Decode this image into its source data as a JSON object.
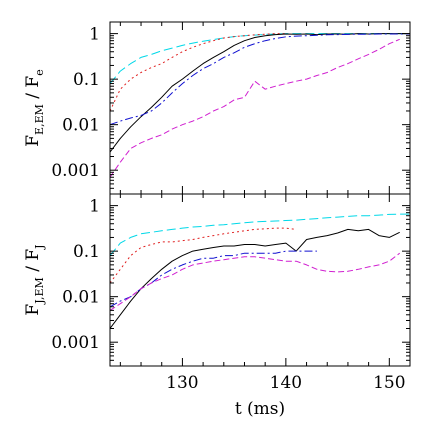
{
  "chart_data": [
    {
      "type": "line",
      "ylabel": {
        "main": "F",
        "sub": "E,EM",
        "sep": " / ",
        "main2": "F",
        "sub2": "e"
      },
      "y_scale": "log",
      "xlim": [
        123,
        152
      ],
      "ylim": [
        0.0003,
        1.8
      ],
      "x_ticks": [
        130,
        140,
        150
      ],
      "y_ticks": [
        {
          "value": 1,
          "label": "1"
        },
        {
          "value": 0.1,
          "label": "0.1"
        },
        {
          "value": 0.01,
          "label": "0.01"
        },
        {
          "value": 0.001,
          "label": "0.001"
        }
      ],
      "series": [
        {
          "color": "#00d8e8",
          "dash": "9 4",
          "x": [
            123,
            124,
            125,
            126,
            127,
            128,
            129,
            130,
            131,
            132,
            133,
            134,
            135,
            136,
            137,
            138,
            139,
            140,
            141,
            142,
            143,
            144,
            145,
            146,
            147,
            148,
            149,
            150,
            151,
            152
          ],
          "y": [
            0.08,
            0.15,
            0.22,
            0.3,
            0.35,
            0.42,
            0.48,
            0.55,
            0.62,
            0.68,
            0.74,
            0.8,
            0.86,
            0.9,
            0.93,
            0.96,
            0.98,
            1.0,
            1.0,
            1.0,
            1.0,
            1.0,
            1.0,
            1.0,
            1.0,
            1.0,
            1.0,
            1.0,
            1.0,
            1.0
          ]
        },
        {
          "color": "#e02020",
          "dash": "2 3",
          "x": [
            123,
            124,
            125,
            126,
            127,
            128,
            129,
            130,
            131,
            132,
            133,
            134,
            135,
            136,
            137,
            138,
            139,
            140
          ],
          "y": [
            0.02,
            0.06,
            0.1,
            0.14,
            0.18,
            0.22,
            0.3,
            0.4,
            0.5,
            0.6,
            0.7,
            0.8,
            0.86,
            0.9,
            0.94,
            0.97,
            1.0,
            1.0
          ]
        },
        {
          "color": "#000000",
          "dash": "",
          "x": [
            123,
            124,
            125,
            126,
            127,
            128,
            129,
            130,
            131,
            132,
            133,
            134,
            135,
            136,
            137,
            138,
            139,
            140,
            141,
            142,
            143,
            144,
            145,
            146,
            147,
            148,
            149,
            150,
            151,
            152
          ],
          "y": [
            0.0025,
            0.005,
            0.009,
            0.015,
            0.024,
            0.04,
            0.07,
            0.1,
            0.15,
            0.22,
            0.3,
            0.4,
            0.55,
            0.7,
            0.82,
            0.9,
            0.95,
            0.98,
            0.97,
            0.98,
            0.95,
            0.98,
            0.98,
            0.97,
            1.0,
            0.98,
            1.0,
            1.0,
            1.0,
            1.0
          ]
        },
        {
          "color": "#1010d0",
          "dash": "8 3 2 3",
          "x": [
            123,
            124,
            125,
            126,
            127,
            128,
            129,
            130,
            131,
            132,
            133,
            134,
            135,
            136,
            137,
            138,
            139,
            140,
            141,
            142,
            143,
            144,
            145,
            146,
            147,
            148,
            149,
            150,
            151,
            152
          ],
          "y": [
            0.01,
            0.012,
            0.014,
            0.016,
            0.02,
            0.03,
            0.05,
            0.08,
            0.12,
            0.17,
            0.22,
            0.3,
            0.38,
            0.5,
            0.6,
            0.7,
            0.78,
            0.85,
            0.88,
            0.9,
            0.92,
            0.94,
            0.95,
            0.96,
            0.97,
            0.97,
            0.98,
            0.98,
            0.98,
            0.98
          ]
        },
        {
          "color": "#d020d0",
          "dash": "6 3",
          "x": [
            123,
            124,
            125,
            126,
            127,
            128,
            129,
            130,
            131,
            132,
            133,
            134,
            135,
            136,
            137,
            138,
            139,
            140,
            141,
            142,
            143,
            144,
            145,
            146,
            147,
            148,
            149,
            150,
            151
          ],
          "y": [
            0.0007,
            0.0015,
            0.003,
            0.004,
            0.005,
            0.006,
            0.008,
            0.01,
            0.012,
            0.015,
            0.02,
            0.025,
            0.035,
            0.04,
            0.09,
            0.06,
            0.07,
            0.08,
            0.09,
            0.1,
            0.12,
            0.14,
            0.18,
            0.22,
            0.28,
            0.35,
            0.45,
            0.6,
            0.75
          ]
        }
      ]
    },
    {
      "type": "line",
      "xlabel": "t (ms)",
      "ylabel": {
        "main": "F",
        "sub": "J,EM",
        "sep": " / ",
        "main2": "F",
        "sub2": "J"
      },
      "y_scale": "log",
      "xlim": [
        123,
        152
      ],
      "ylim": [
        0.0003,
        1.8
      ],
      "x_ticks": [
        {
          "value": 130,
          "label": "130"
        },
        {
          "value": 140,
          "label": "140"
        },
        {
          "value": 150,
          "label": "150"
        }
      ],
      "y_ticks": [
        {
          "value": 1,
          "label": "1"
        },
        {
          "value": 0.1,
          "label": "0.1"
        },
        {
          "value": 0.01,
          "label": "0.01"
        },
        {
          "value": 0.001,
          "label": "0.001"
        }
      ],
      "series": [
        {
          "color": "#00d8e8",
          "dash": "9 4",
          "x": [
            123,
            124,
            125,
            126,
            127,
            128,
            129,
            130,
            131,
            132,
            133,
            134,
            135,
            136,
            137,
            138,
            139,
            140,
            141,
            142,
            143,
            144,
            145,
            146,
            147,
            148,
            149,
            150,
            151,
            152
          ],
          "y": [
            0.08,
            0.15,
            0.2,
            0.24,
            0.26,
            0.28,
            0.3,
            0.32,
            0.34,
            0.35,
            0.37,
            0.38,
            0.4,
            0.42,
            0.44,
            0.45,
            0.46,
            0.47,
            0.48,
            0.5,
            0.52,
            0.54,
            0.56,
            0.58,
            0.6,
            0.6,
            0.62,
            0.64,
            0.65,
            0.65
          ]
        },
        {
          "color": "#e02020",
          "dash": "2 3",
          "x": [
            123,
            124,
            125,
            126,
            127,
            128,
            129,
            130,
            131,
            132,
            133,
            134,
            135,
            136,
            137,
            138,
            139,
            140,
            141
          ],
          "y": [
            0.02,
            0.04,
            0.08,
            0.12,
            0.14,
            0.16,
            0.16,
            0.17,
            0.18,
            0.2,
            0.22,
            0.24,
            0.26,
            0.28,
            0.3,
            0.31,
            0.32,
            0.32,
            0.3
          ]
        },
        {
          "color": "#000000",
          "dash": "",
          "x": [
            123,
            124,
            125,
            126,
            127,
            128,
            129,
            130,
            131,
            132,
            133,
            134,
            135,
            136,
            137,
            138,
            139,
            140,
            141,
            142,
            143,
            144,
            145,
            146,
            147,
            148,
            149,
            150,
            151
          ],
          "y": [
            0.002,
            0.004,
            0.008,
            0.015,
            0.025,
            0.04,
            0.06,
            0.08,
            0.1,
            0.11,
            0.12,
            0.13,
            0.13,
            0.14,
            0.14,
            0.13,
            0.14,
            0.15,
            0.1,
            0.18,
            0.2,
            0.22,
            0.25,
            0.3,
            0.28,
            0.3,
            0.22,
            0.2,
            0.26
          ]
        },
        {
          "color": "#1010d0",
          "dash": "8 3 2 3",
          "x": [
            123,
            124,
            125,
            126,
            127,
            128,
            129,
            130,
            131,
            132,
            133,
            134,
            135,
            136,
            137,
            138,
            139,
            140,
            141,
            142,
            143
          ],
          "y": [
            0.006,
            0.008,
            0.01,
            0.015,
            0.02,
            0.03,
            0.04,
            0.05,
            0.06,
            0.07,
            0.07,
            0.08,
            0.08,
            0.09,
            0.09,
            0.09,
            0.09,
            0.1,
            0.1,
            0.1,
            0.1
          ]
        },
        {
          "color": "#d020d0",
          "dash": "6 3",
          "x": [
            123,
            124,
            125,
            126,
            127,
            128,
            129,
            130,
            131,
            132,
            133,
            134,
            135,
            136,
            137,
            138,
            139,
            140,
            141,
            142,
            143,
            144,
            145,
            146,
            147,
            148,
            149,
            150,
            151
          ],
          "y": [
            0.005,
            0.007,
            0.01,
            0.015,
            0.02,
            0.025,
            0.03,
            0.04,
            0.05,
            0.055,
            0.06,
            0.065,
            0.07,
            0.075,
            0.075,
            0.07,
            0.065,
            0.06,
            0.06,
            0.05,
            0.04,
            0.036,
            0.035,
            0.036,
            0.04,
            0.045,
            0.05,
            0.06,
            0.09
          ]
        }
      ]
    }
  ]
}
